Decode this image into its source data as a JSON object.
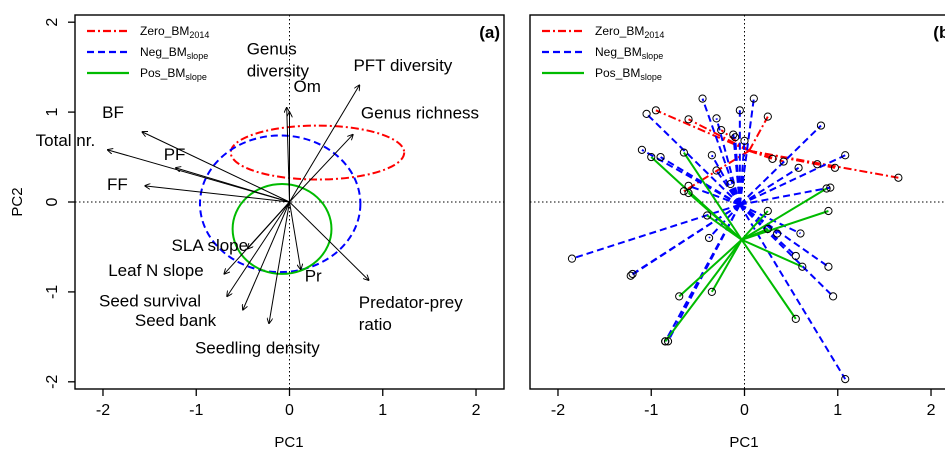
{
  "chart_data": [
    {
      "type": "biplot",
      "panel_label": "(a)",
      "xlabel": "PC1",
      "ylabel": "PC2",
      "xlim": [
        -2.3,
        2.3
      ],
      "ylim": [
        -2.08,
        2.08
      ],
      "xticks": [
        -2,
        -1,
        0,
        1,
        2
      ],
      "yticks": [
        -2,
        -1,
        0,
        1,
        2
      ],
      "xtick_labels": [
        "-2",
        "-1",
        "0",
        "1",
        "2"
      ],
      "ytick_labels": [
        "-2",
        "-1",
        "0",
        "1",
        "2"
      ],
      "zero_lines": true,
      "legend": {
        "position": "top-left",
        "entries": [
          {
            "base": "Zero_BM",
            "sub": "2014",
            "color": "#ff0000",
            "dash": "dashdot"
          },
          {
            "base": "Neg_BM",
            "sub": "slope",
            "color": "#0000ff",
            "dash": "dashed"
          },
          {
            "base": "Pos_BM",
            "sub": "slope",
            "color": "#00bb00",
            "dash": "solid"
          }
        ]
      },
      "vectors": [
        {
          "label": "BF",
          "x": -1.58,
          "y": 0.78
        },
        {
          "label": "Total nr.",
          "x": -1.95,
          "y": 0.58
        },
        {
          "label": "PF",
          "x": -1.22,
          "y": 0.38
        },
        {
          "label": "FF",
          "x": -1.55,
          "y": 0.18
        },
        {
          "label": "Genus diversity",
          "x": -0.03,
          "y": 1.05
        },
        {
          "label": "Om",
          "x": 0.0,
          "y": 1.0
        },
        {
          "label": "PFT diversity",
          "x": 0.75,
          "y": 1.3
        },
        {
          "label": "Genus richness",
          "x": 0.68,
          "y": 0.75
        },
        {
          "label": "SLA slope",
          "x": -0.45,
          "y": -0.52
        },
        {
          "label": "Leaf N slope",
          "x": -0.7,
          "y": -0.8
        },
        {
          "label": "Seed survival",
          "x": -0.67,
          "y": -1.05
        },
        {
          "label": "Seed bank",
          "x": -0.5,
          "y": -1.2
        },
        {
          "label": "Seedling density",
          "x": -0.22,
          "y": -1.35
        },
        {
          "label": "Pr",
          "x": 0.12,
          "y": -0.75
        },
        {
          "label": "Predator-prey ratio",
          "x": 0.85,
          "y": -0.87
        }
      ],
      "ellipses": [
        {
          "group": "Zero_BM2014",
          "cx": 0.3,
          "cy": 0.55,
          "rx": 0.93,
          "ry": 0.3,
          "color": "#ff0000",
          "dash": "dashdot"
        },
        {
          "group": "Neg_BM_slope",
          "cx": -0.1,
          "cy": -0.02,
          "rx": 0.86,
          "ry": 0.76,
          "color": "#0000ff",
          "dash": "dashed"
        },
        {
          "group": "Pos_BM_slope",
          "cx": -0.08,
          "cy": -0.3,
          "rx": 0.53,
          "ry": 0.5,
          "color": "#00bb00",
          "dash": "solid"
        }
      ]
    },
    {
      "type": "scatter",
      "panel_label": "(b)",
      "xlabel": "PC1",
      "ylabel": "",
      "xlim": [
        -2.3,
        2.3
      ],
      "ylim": [
        -2.08,
        2.08
      ],
      "xticks": [
        -2,
        -1,
        0,
        1,
        2
      ],
      "xtick_labels": [
        "-2",
        "-1",
        "0",
        "1",
        "2"
      ],
      "zero_lines": true,
      "legend": {
        "position": "top-left",
        "entries": [
          {
            "base": "Zero_BM",
            "sub": "2014",
            "color": "#ff0000",
            "dash": "dashdot"
          },
          {
            "base": "Neg_BM",
            "sub": "slope",
            "color": "#0000ff",
            "dash": "dashed"
          },
          {
            "base": "Pos_BM",
            "sub": "slope",
            "color": "#00bb00",
            "dash": "solid"
          }
        ]
      },
      "series": [
        {
          "name": "Zero_BM2014",
          "color": "#ff0000",
          "dash": "dashdot",
          "centroid": [
            0.05,
            0.57
          ],
          "points": [
            [
              -0.95,
              1.02
            ],
            [
              -0.6,
              0.92
            ],
            [
              0.25,
              0.95
            ],
            [
              -0.25,
              0.8
            ],
            [
              0.3,
              0.48
            ],
            [
              0.42,
              0.45
            ],
            [
              0.78,
              0.42
            ],
            [
              0.97,
              0.38
            ],
            [
              1.65,
              0.27
            ],
            [
              -0.65,
              0.12
            ]
          ]
        },
        {
          "name": "Neg_BM_slope",
          "color": "#0000ff",
          "dash": "dashed",
          "centroid": [
            -0.05,
            -0.03
          ],
          "points": [
            [
              -1.05,
              0.98
            ],
            [
              -0.45,
              1.15
            ],
            [
              -0.3,
              0.93
            ],
            [
              -0.05,
              1.02
            ],
            [
              0.1,
              1.15
            ],
            [
              0.82,
              0.85
            ],
            [
              1.08,
              0.52
            ],
            [
              0.58,
              0.38
            ],
            [
              0.92,
              0.16
            ],
            [
              -0.35,
              0.52
            ],
            [
              -0.12,
              0.75
            ],
            [
              -1.1,
              0.58
            ],
            [
              -0.9,
              0.5
            ],
            [
              -0.3,
              0.35
            ],
            [
              -0.6,
              0.18
            ],
            [
              -1.85,
              -0.63
            ],
            [
              -1.2,
              -0.8
            ],
            [
              -1.22,
              -0.82
            ],
            [
              -0.85,
              -1.55
            ],
            [
              -0.82,
              -1.55
            ],
            [
              -0.38,
              -0.4
            ],
            [
              0.35,
              -0.35
            ],
            [
              0.6,
              -0.35
            ],
            [
              0.55,
              -0.6
            ],
            [
              0.9,
              -0.72
            ],
            [
              0.95,
              -1.05
            ],
            [
              1.08,
              -1.97
            ],
            [
              -0.1,
              0.72
            ],
            [
              -0.15,
              0.2
            ],
            [
              0.0,
              0.68
            ]
          ]
        },
        {
          "name": "Pos_BM_slope",
          "color": "#00bb00",
          "dash": "solid",
          "centroid": [
            -0.03,
            -0.42
          ],
          "points": [
            [
              -1.0,
              0.5
            ],
            [
              -0.65,
              0.55
            ],
            [
              -0.6,
              0.1
            ],
            [
              -0.4,
              -0.15
            ],
            [
              -0.7,
              -1.05
            ],
            [
              -0.35,
              -1.0
            ],
            [
              -0.85,
              -1.55
            ],
            [
              0.55,
              -1.3
            ],
            [
              0.62,
              -0.72
            ],
            [
              0.9,
              -0.1
            ],
            [
              0.88,
              0.15
            ],
            [
              0.25,
              -0.1
            ],
            [
              0.25,
              -0.3
            ]
          ]
        }
      ]
    }
  ]
}
